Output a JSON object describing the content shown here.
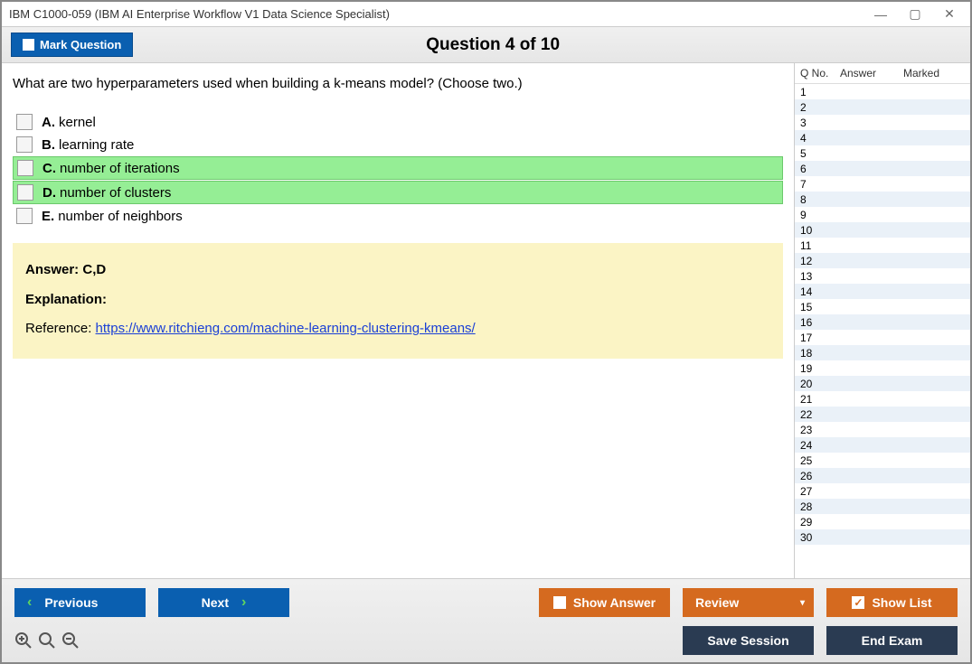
{
  "window": {
    "title": "IBM C1000-059 (IBM AI Enterprise Workflow V1 Data Science Specialist)"
  },
  "header": {
    "mark_label": "Mark Question",
    "counter": "Question 4 of 10"
  },
  "question": {
    "text": "What are two hyperparameters used when building a k-means model? (Choose two.)",
    "options": [
      {
        "letter": "A.",
        "text": "kernel",
        "correct": false
      },
      {
        "letter": "B.",
        "text": "learning rate",
        "correct": false
      },
      {
        "letter": "C.",
        "text": "number of iterations",
        "correct": true
      },
      {
        "letter": "D.",
        "text": "number of clusters",
        "correct": true
      },
      {
        "letter": "E.",
        "text": "number of neighbors",
        "correct": false
      }
    ]
  },
  "answer_box": {
    "answer_label": "Answer: ",
    "answer_value": "C,D",
    "explanation_label": "Explanation:",
    "reference_prefix": "Reference: ",
    "reference_url": "https://www.ritchieng.com/machine-learning-clustering-kmeans/"
  },
  "sidebar": {
    "headers": {
      "qno": "Q No.",
      "answer": "Answer",
      "marked": "Marked"
    },
    "total_rows": 30
  },
  "footer": {
    "previous": "Previous",
    "next": "Next",
    "show_answer": "Show Answer",
    "review": "Review",
    "show_list": "Show List",
    "save_session": "Save Session",
    "end_exam": "End Exam"
  },
  "colors": {
    "blue": "#0a5fb0",
    "orange": "#d56a1f",
    "dark": "#2a3b52",
    "correct_bg": "#95ee95",
    "answer_bg": "#fbf4c5",
    "sidebar_even": "#eaf1f8"
  }
}
